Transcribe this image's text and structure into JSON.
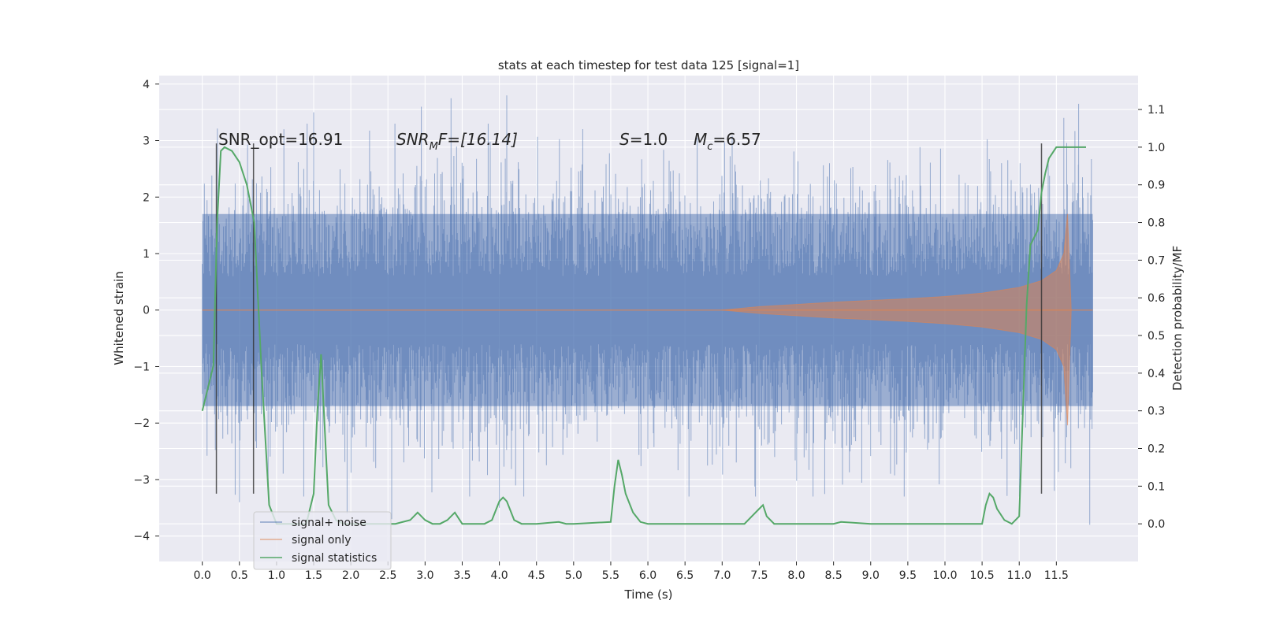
{
  "chart_data": {
    "type": "line",
    "title": "stats at each timestep for test data 125 [signal=1]",
    "xlabel": "Time (s)",
    "ylabel": "Whitened strain",
    "y2label": "Detection probability/MF",
    "xlim": [
      -0.58,
      12.6
    ],
    "ylim": [
      -4.45,
      4.15
    ],
    "y2lim": [
      -0.1,
      1.19
    ],
    "grid": true,
    "legend_position": "lower-left",
    "x_ticks": [
      "0.0",
      "0.5",
      "1.0",
      "1.5",
      "2.0",
      "2.5",
      "3.0",
      "3.5",
      "4.0",
      "4.5",
      "5.0",
      "5.5",
      "6.0",
      "6.5",
      "7.0",
      "7.5",
      "8.0",
      "8.5",
      "9.0",
      "9.5",
      "10.0",
      "10.5",
      "11.0",
      "11.5"
    ],
    "y_ticks": [
      "−4",
      "−3",
      "−2",
      "−1",
      "0",
      "1",
      "2",
      "3",
      "4"
    ],
    "y2_ticks": [
      "0.0",
      "0.1",
      "0.2",
      "0.3",
      "0.4",
      "0.5",
      "0.6",
      "0.7",
      "0.8",
      "0.9",
      "1.0",
      "1.1"
    ],
    "annotations": {
      "snr_opt": "SNR_opt=16.91",
      "snr_mf_base": "SNR",
      "snr_mf_sub": "M",
      "snr_mf_rest": "F=[16.14]",
      "s_symbol": "S",
      "s_value": "=1.0",
      "mc_symbol": "M",
      "mc_sub": "c",
      "mc_value": "=6.57"
    },
    "vertical_lines_x": [
      0.19,
      0.69,
      11.3
    ],
    "vertical_lines_range": [
      -3.25,
      2.95
    ],
    "series": [
      {
        "name": "signal+ noise",
        "color": "#4c72b0",
        "description_values": "dense whitened noise, |strain| mostly below 2.5, peaks to ~3.8",
        "x_range": [
          0.0,
          11.99
        ],
        "core_amplitude": 1.7,
        "max_peaks": [
          {
            "x": 1.5,
            "y": 3.5
          },
          {
            "x": 2.95,
            "y": 3.6
          },
          {
            "x": 3.35,
            "y": 3.75
          },
          {
            "x": 4.1,
            "y": 3.8
          },
          {
            "x": 11.8,
            "y": 3.65
          },
          {
            "x": 11.6,
            "y": 3.4
          },
          {
            "x": 2.55,
            "y": -3.7
          },
          {
            "x": 11.95,
            "y": -3.8
          },
          {
            "x": 4.0,
            "y": -3.5
          },
          {
            "x": 0.5,
            "y": -3.4
          },
          {
            "x": 1.95,
            "y": -3.6
          }
        ]
      },
      {
        "name": "signal only",
        "color": "#dd8452",
        "description_values": "chirp envelope growing from ~7.0 s to merger at ~11.65 s",
        "envelope_x": [
          7.0,
          7.5,
          8.0,
          8.5,
          9.0,
          9.5,
          10.0,
          10.5,
          11.0,
          11.3,
          11.5,
          11.6,
          11.65,
          11.7
        ],
        "envelope_amp": [
          0.0,
          0.06,
          0.1,
          0.14,
          0.17,
          0.2,
          0.24,
          0.3,
          0.4,
          0.52,
          0.7,
          1.0,
          1.7,
          0.0
        ]
      },
      {
        "name": "signal statistics",
        "color": "#55a868",
        "x": [
          0.0,
          0.15,
          0.2,
          0.25,
          0.3,
          0.4,
          0.5,
          0.6,
          0.7,
          0.8,
          0.9,
          1.0,
          1.1,
          1.2,
          1.3,
          1.4,
          1.5,
          1.55,
          1.6,
          1.65,
          1.7,
          1.8,
          1.9,
          2.0,
          2.2,
          2.4,
          2.6,
          2.8,
          2.9,
          3.0,
          3.1,
          3.2,
          3.3,
          3.4,
          3.5,
          3.6,
          3.8,
          3.9,
          4.0,
          4.05,
          4.1,
          4.2,
          4.3,
          4.5,
          4.8,
          4.9,
          5.0,
          5.5,
          5.55,
          5.6,
          5.65,
          5.7,
          5.8,
          5.9,
          6.0,
          6.1,
          7.0,
          7.3,
          7.4,
          7.5,
          7.55,
          7.6,
          7.7,
          8.0,
          8.5,
          8.6,
          9.0,
          10.5,
          10.55,
          10.6,
          10.65,
          10.7,
          10.8,
          10.9,
          11.0,
          11.05,
          11.1,
          11.15,
          11.2,
          11.25,
          11.3,
          11.35,
          11.4,
          11.5,
          11.6,
          11.7,
          11.8,
          11.9
        ],
        "y": [
          0.3,
          0.42,
          0.8,
          0.99,
          1.0,
          0.99,
          0.96,
          0.9,
          0.8,
          0.4,
          0.05,
          0.0,
          0.0,
          0.0,
          0.0,
          0.0,
          0.08,
          0.3,
          0.45,
          0.25,
          0.05,
          0.01,
          0.0,
          0.0,
          0.0,
          0.0,
          0.0,
          0.01,
          0.03,
          0.01,
          0.0,
          0.0,
          0.01,
          0.03,
          0.0,
          0.0,
          0.0,
          0.01,
          0.06,
          0.07,
          0.06,
          0.01,
          0.0,
          0.0,
          0.005,
          0.0,
          0.0,
          0.005,
          0.1,
          0.17,
          0.13,
          0.08,
          0.03,
          0.005,
          0.0,
          0.0,
          0.0,
          0.0,
          0.02,
          0.04,
          0.05,
          0.02,
          0.0,
          0.0,
          0.0,
          0.005,
          0.0,
          0.0,
          0.05,
          0.08,
          0.07,
          0.04,
          0.01,
          0.0,
          0.02,
          0.3,
          0.58,
          0.74,
          0.76,
          0.78,
          0.88,
          0.93,
          0.97,
          1.0,
          1.0,
          1.0,
          1.0,
          1.0
        ]
      }
    ]
  }
}
